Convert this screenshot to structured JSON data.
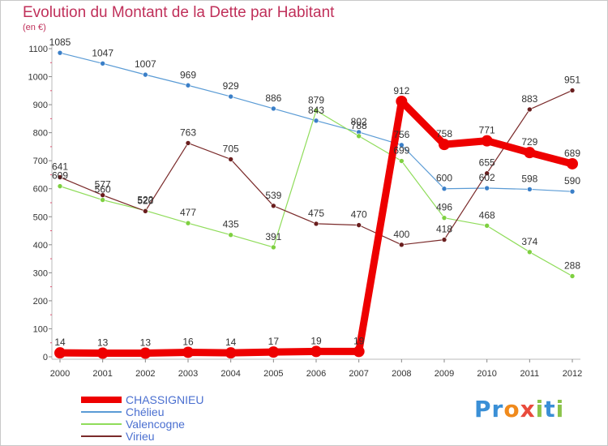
{
  "title": "Evolution du Montant de la Dette par Habitant",
  "subtitle": "(en €)",
  "logo_letters": [
    {
      "ch": "P",
      "color": "#3a8fd6"
    },
    {
      "ch": "r",
      "color": "#3a8fd6"
    },
    {
      "ch": "o",
      "color": "#f08a1c"
    },
    {
      "ch": "x",
      "color": "#e94b3c"
    },
    {
      "ch": "i",
      "color": "#8bc34a"
    },
    {
      "ch": "t",
      "color": "#3a8fd6"
    },
    {
      "ch": "i",
      "color": "#8bc34a"
    }
  ],
  "chart_data": {
    "type": "line",
    "title": "Evolution du Montant de la Dette par Habitant",
    "x": [
      "2000",
      "2001",
      "2002",
      "2003",
      "2004",
      "2005",
      "2006",
      "2007",
      "2008",
      "2009",
      "2010",
      "2011",
      "2012"
    ],
    "ylim": [
      0,
      1100
    ],
    "yticks": [
      0,
      100,
      200,
      300,
      400,
      500,
      600,
      700,
      800,
      900,
      1000,
      1100
    ],
    "grid": false,
    "legend_position": "bottom-left",
    "series": [
      {
        "name": "CHASSIGNIEU",
        "color": "#ee0000",
        "width": 9,
        "dot": 7,
        "values": [
          14,
          13,
          13,
          16,
          14,
          17,
          19,
          19,
          912,
          758,
          771,
          729,
          689
        ]
      },
      {
        "name": "Chélieu",
        "color": "#5a9bd5",
        "width": 1.2,
        "dot": 3,
        "dotFill": "#3a7fc8",
        "values": [
          1085,
          1047,
          1007,
          969,
          929,
          886,
          843,
          802,
          756,
          600,
          602,
          598,
          590
        ]
      },
      {
        "name": "Valencogne",
        "color": "#8fdc5a",
        "width": 1.2,
        "dot": 3,
        "dotFill": "#7ed040",
        "values": [
          609,
          560,
          522,
          477,
          435,
          391,
          879,
          788,
          699,
          496,
          468,
          374,
          288
        ]
      },
      {
        "name": "Virieu",
        "color": "#7a2a2a",
        "width": 1.2,
        "dot": 3,
        "dotFill": "#6a1e1e",
        "values": [
          641,
          577,
          520,
          763,
          705,
          539,
          475,
          470,
          400,
          418,
          655,
          883,
          951
        ]
      }
    ]
  }
}
